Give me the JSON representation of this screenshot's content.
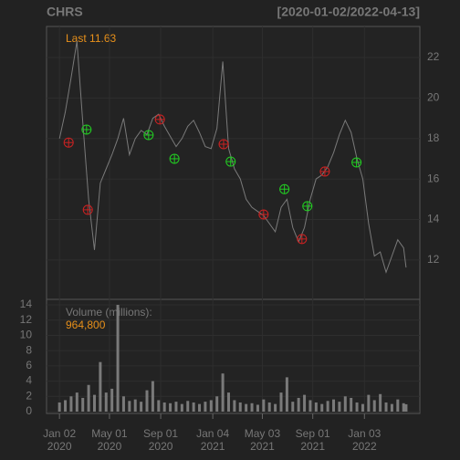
{
  "chart_data": [
    {
      "type": "line",
      "title": "CHRS",
      "subtitle": "[2020-01-02/2022-04-13]",
      "color": "#7a7a7a",
      "last_label": "Last",
      "last_value": 11.63,
      "x": [
        "2020-01-02",
        "2020-01-16",
        "2020-01-30",
        "2020-02-13",
        "2020-02-27",
        "2020-03-12",
        "2020-03-26",
        "2020-04-09",
        "2020-04-23",
        "2020-05-07",
        "2020-05-21",
        "2020-06-04",
        "2020-06-18",
        "2020-07-02",
        "2020-07-16",
        "2020-07-30",
        "2020-08-13",
        "2020-08-27",
        "2020-09-10",
        "2020-09-24",
        "2020-10-08",
        "2020-10-22",
        "2020-11-05",
        "2020-11-19",
        "2020-12-03",
        "2020-12-17",
        "2020-12-31",
        "2021-01-14",
        "2021-01-28",
        "2021-02-11",
        "2021-02-25",
        "2021-03-11",
        "2021-03-25",
        "2021-04-08",
        "2021-04-22",
        "2021-05-06",
        "2021-05-20",
        "2021-06-03",
        "2021-06-17",
        "2021-07-01",
        "2021-07-15",
        "2021-07-29",
        "2021-08-12",
        "2021-08-26",
        "2021-09-09",
        "2021-09-23",
        "2021-10-07",
        "2021-10-21",
        "2021-11-04",
        "2021-11-18",
        "2021-12-02",
        "2021-12-16",
        "2021-12-30",
        "2022-01-13",
        "2022-01-27",
        "2022-02-10",
        "2022-02-24",
        "2022-03-10",
        "2022-03-24",
        "2022-04-07",
        "2022-04-13"
      ],
      "values": [
        18.0,
        19.3,
        21.0,
        22.8,
        18.8,
        15.0,
        12.5,
        15.8,
        16.5,
        17.2,
        18.0,
        19.0,
        17.2,
        18.0,
        18.4,
        18.2,
        19.0,
        19.2,
        18.6,
        18.1,
        17.6,
        18.0,
        18.6,
        18.9,
        18.3,
        17.6,
        17.5,
        18.5,
        21.8,
        17.5,
        16.5,
        16.0,
        15.0,
        14.6,
        14.4,
        14.2,
        13.8,
        13.4,
        14.6,
        15.0,
        13.6,
        12.9,
        13.6,
        15.0,
        16.0,
        16.2,
        16.6,
        17.3,
        18.2,
        18.9,
        18.3,
        17.0,
        16.0,
        13.8,
        12.2,
        12.4,
        11.4,
        12.2,
        13.0,
        12.6,
        11.63
      ],
      "buy": {
        "color": "#22cc22",
        "x": [
          "2020-03-07",
          "2020-08-03",
          "2020-10-04",
          "2021-02-16",
          "2021-06-25",
          "2021-08-19",
          "2021-12-15"
        ],
        "values": [
          18.44,
          18.17,
          17.0,
          16.86,
          15.5,
          14.66,
          16.82
        ]
      },
      "sell": {
        "color": "#cc2222",
        "x": [
          "2020-01-24",
          "2020-03-10",
          "2020-08-30",
          "2021-01-30",
          "2021-05-06",
          "2021-08-06",
          "2021-09-30"
        ],
        "values": [
          17.8,
          14.48,
          18.94,
          17.72,
          14.25,
          13.04,
          16.37
        ]
      },
      "xlim": [
        "2019-12-02",
        "2022-05-16"
      ],
      "ylim": [
        10.06,
        23.53
      ],
      "yticks": [
        12,
        14,
        16,
        18,
        20,
        22
      ],
      "grid": true
    },
    {
      "type": "bar",
      "label": "Volume (millions):",
      "last": {
        "value": 0.9648,
        "label": "964,800"
      },
      "color": "#7a7a7a",
      "x": [
        "2020-01-02",
        "2020-01-16",
        "2020-01-30",
        "2020-02-13",
        "2020-02-27",
        "2020-03-12",
        "2020-03-26",
        "2020-04-09",
        "2020-04-23",
        "2020-05-07",
        "2020-05-21",
        "2020-06-04",
        "2020-06-18",
        "2020-07-02",
        "2020-07-16",
        "2020-07-30",
        "2020-08-13",
        "2020-08-27",
        "2020-09-10",
        "2020-09-24",
        "2020-10-08",
        "2020-10-22",
        "2020-11-05",
        "2020-11-19",
        "2020-12-03",
        "2020-12-17",
        "2020-12-31",
        "2021-01-14",
        "2021-01-28",
        "2021-02-11",
        "2021-02-25",
        "2021-03-11",
        "2021-03-25",
        "2021-04-08",
        "2021-04-22",
        "2021-05-06",
        "2021-05-20",
        "2021-06-03",
        "2021-06-17",
        "2021-07-01",
        "2021-07-15",
        "2021-07-29",
        "2021-08-12",
        "2021-08-26",
        "2021-09-09",
        "2021-09-23",
        "2021-10-07",
        "2021-10-21",
        "2021-11-04",
        "2021-11-18",
        "2021-12-02",
        "2021-12-16",
        "2021-12-30",
        "2022-01-13",
        "2022-01-27",
        "2022-02-10",
        "2022-02-24",
        "2022-03-10",
        "2022-03-24",
        "2022-04-07",
        "2022-04-13"
      ],
      "values": [
        1.2,
        1.5,
        2.0,
        2.5,
        1.8,
        3.5,
        2.2,
        6.5,
        2.5,
        3.0,
        14.0,
        2.0,
        1.4,
        1.6,
        1.3,
        2.8,
        4.0,
        1.5,
        1.2,
        1.1,
        1.3,
        1.0,
        1.4,
        1.2,
        1.0,
        1.3,
        1.5,
        2.0,
        5.0,
        2.5,
        1.5,
        1.2,
        1.0,
        1.1,
        0.9,
        1.6,
        1.2,
        1.0,
        2.5,
        4.5,
        1.3,
        1.8,
        2.2,
        1.5,
        1.2,
        1.0,
        1.4,
        1.6,
        1.3,
        2.0,
        1.8,
        1.2,
        1.0,
        2.2,
        1.5,
        2.3,
        1.2,
        1.0,
        1.6,
        1.1,
        0.9648
      ],
      "xlim": [
        "2019-12-02",
        "2022-05-16"
      ],
      "ylim": [
        -0.24,
        14.72
      ],
      "yticks": [
        0,
        2,
        4,
        6,
        8,
        10,
        12,
        14
      ],
      "grid": true,
      "xticks": [
        {
          "value": "2020-01-02",
          "label": [
            "Jan 02",
            "2020"
          ]
        },
        {
          "value": "2020-05-01",
          "label": [
            "May 01",
            "2020"
          ]
        },
        {
          "value": "2020-09-01",
          "label": [
            "Sep 01",
            "2020"
          ]
        },
        {
          "value": "2021-01-04",
          "label": [
            "Jan 04",
            "2021"
          ]
        },
        {
          "value": "2021-05-03",
          "label": [
            "May 03",
            "2021"
          ]
        },
        {
          "value": "2021-09-01",
          "label": [
            "Sep 01",
            "2021"
          ]
        },
        {
          "value": "2022-01-03",
          "label": [
            "Jan 03",
            "2022"
          ]
        }
      ]
    }
  ]
}
